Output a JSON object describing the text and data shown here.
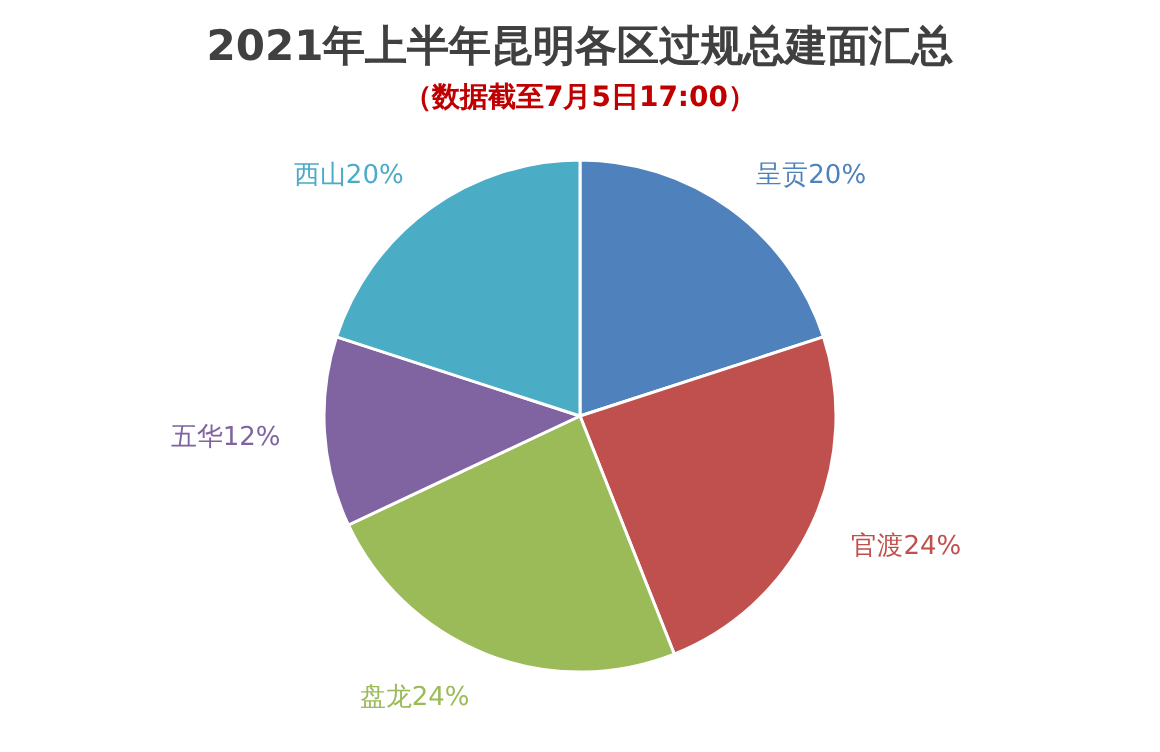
{
  "chart_data": {
    "type": "pie",
    "title": "2021年上半年昆明各区过规总建面汇总",
    "subtitle": "（数据截至7月5日17:00）",
    "categories": [
      "呈贡",
      "官渡",
      "盘龙",
      "五华",
      "西山"
    ],
    "values": [
      20,
      24,
      24,
      12,
      20
    ],
    "value_labels": [
      "20%",
      "24%",
      "24%",
      "12%",
      "20%"
    ],
    "colors": [
      "#4f81bd",
      "#c0504d",
      "#9bbb59",
      "#8064a2",
      "#4bacc6"
    ]
  }
}
